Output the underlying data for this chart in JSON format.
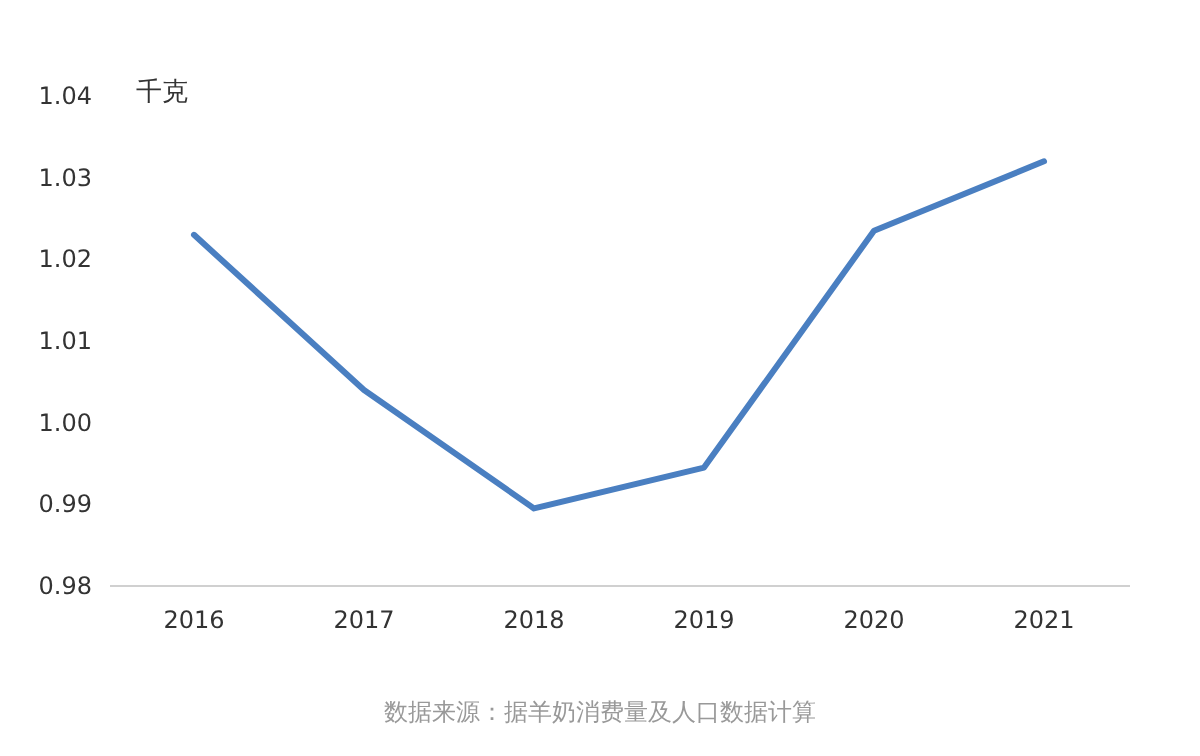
{
  "chart_data": {
    "type": "line",
    "ylabel": "千克",
    "categories": [
      "2016",
      "2017",
      "2018",
      "2019",
      "2020",
      "2021"
    ],
    "series": [
      {
        "color": "#4a7fc1",
        "values": [
          1.023,
          1.004,
          0.9895,
          0.9945,
          1.0235,
          1.032
        ]
      }
    ],
    "ylim": [
      0.98,
      1.04
    ],
    "yticks": [
      0.98,
      0.99,
      {
        "value": 1.0,
        "label": "1.00"
      },
      1.01,
      1.02,
      1.03,
      1.04
    ],
    "annotations": [
      "数据来源：据羊奶消费量及人口数据计算"
    ]
  }
}
